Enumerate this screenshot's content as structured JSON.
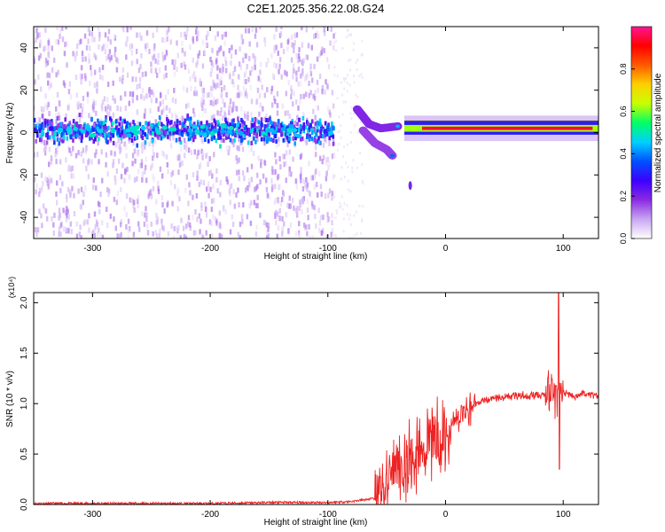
{
  "title": "C2E1.2025.356.22.08.G24",
  "colors": {
    "snr_line": "#ee2222",
    "colormap": [
      "#ffffff",
      "#c9a6f2",
      "#8a2be2",
      "#3d00ff",
      "#0050ff",
      "#00d0ff",
      "#00ff66",
      "#c8ff00",
      "#ffd000",
      "#ff5a00",
      "#ff0000",
      "#ff1493"
    ]
  },
  "chart_data": [
    {
      "type": "heatmap",
      "xlabel": "Height of straight line (km)",
      "ylabel": "Frequency (Hz)",
      "xlim": [
        -350,
        130
      ],
      "ylim": [
        -50,
        50
      ],
      "x_ticks": [
        -300,
        -200,
        -100,
        0,
        100
      ],
      "y_ticks": [
        -40,
        -20,
        0,
        20,
        40
      ],
      "colorbar": {
        "label": "Normalized spectral amplitude",
        "range": [
          0.0,
          1.0
        ],
        "ticks": [
          "0.0",
          "0.2",
          "0.4",
          "0.6",
          "0.8"
        ]
      },
      "features": [
        {
          "name": "noise-scatter",
          "x_range": [
            -350,
            -95
          ],
          "freq_range": [
            -50,
            50
          ],
          "amplitude": 0.05
        },
        {
          "name": "main-band",
          "x_range": [
            -350,
            -95
          ],
          "freq": 1,
          "amplitude": 0.25
        },
        {
          "name": "branch-upper",
          "points": [
            [
              -75,
              11
            ],
            [
              -65,
              4
            ],
            [
              -55,
              2
            ],
            [
              -40,
              3
            ]
          ],
          "amplitude": 0.35
        },
        {
          "name": "branch-lower",
          "points": [
            [
              -70,
              1
            ],
            [
              -60,
              -5
            ],
            [
              -50,
              -8
            ],
            [
              -45,
              -11
            ]
          ],
          "amplitude": 0.3
        },
        {
          "name": "outlier",
          "points": [
            [
              -30,
              -25
            ]
          ],
          "amplitude": 0.2
        },
        {
          "name": "carrier-line",
          "x_range": [
            -35,
            130
          ],
          "freq": 2,
          "amplitude": 0.95
        }
      ]
    },
    {
      "type": "line",
      "xlabel": "Height of straight line (km)",
      "ylabel": "SNR (10 * v/v)",
      "exponent_label": "(x10⁴)",
      "xlim": [
        -350,
        130
      ],
      "ylim": [
        0.0,
        2.1
      ],
      "x_ticks": [
        -300,
        -200,
        -100,
        0,
        100
      ],
      "y_ticks": [
        "0.0",
        "0.5",
        "1.0",
        "1.5",
        "2.0"
      ],
      "series": [
        {
          "x": [
            -350,
            -300,
            -250,
            -200,
            -150,
            -100,
            -80,
            -60,
            -55,
            -50,
            -45,
            -40,
            -35,
            -30,
            -25,
            -20,
            -15,
            -10,
            -5,
            0,
            10,
            20,
            30,
            40,
            50,
            60,
            70,
            80,
            85,
            88,
            90,
            93,
            95,
            96,
            98,
            100,
            110,
            120,
            130
          ],
          "y": [
            0.01,
            0.01,
            0.01,
            0.01,
            0.02,
            0.02,
            0.03,
            0.06,
            0.12,
            0.25,
            0.35,
            0.45,
            0.4,
            0.45,
            0.5,
            0.55,
            0.6,
            0.62,
            0.66,
            0.7,
            0.85,
            0.95,
            1.02,
            1.06,
            1.07,
            1.08,
            1.08,
            1.08,
            1.1,
            1.12,
            1.08,
            1.05,
            1.12,
            0.9,
            1.15,
            1.1,
            1.08,
            1.1,
            1.08
          ]
        }
      ]
    }
  ]
}
